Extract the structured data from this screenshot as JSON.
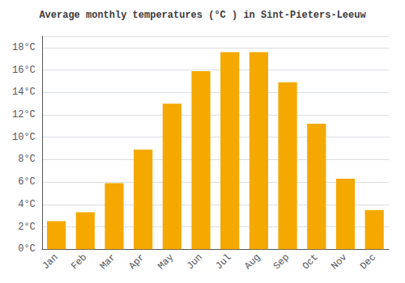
{
  "chart_data": {
    "type": "bar",
    "title": "Average monthly temperatures (°C ) in Sint-Pieters-Leeuw",
    "categories": [
      "Jan",
      "Feb",
      "Mar",
      "Apr",
      "May",
      "Jun",
      "Jul",
      "Aug",
      "Sep",
      "Oct",
      "Nov",
      "Dec"
    ],
    "values": [
      2.5,
      3.3,
      5.9,
      8.9,
      13.0,
      15.9,
      17.6,
      17.6,
      14.9,
      11.2,
      6.3,
      3.5
    ],
    "color": "#F5A800",
    "ylim": [
      0,
      19
    ],
    "yticks": [
      {
        "value": 0,
        "label": "0°C"
      },
      {
        "value": 2,
        "label": "2°C"
      },
      {
        "value": 4,
        "label": "4°C"
      },
      {
        "value": 6,
        "label": "6°C"
      },
      {
        "value": 8,
        "label": "8°C"
      },
      {
        "value": 10,
        "label": "10°C"
      },
      {
        "value": 12,
        "label": "12°C"
      },
      {
        "value": 14,
        "label": "14°C"
      },
      {
        "value": 16,
        "label": "16°C"
      },
      {
        "value": 18,
        "label": "18°C"
      }
    ],
    "grid": true
  }
}
